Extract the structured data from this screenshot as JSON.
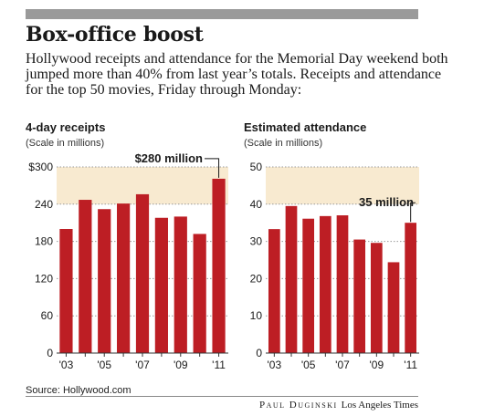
{
  "graphic": {
    "headline": "Box-office boost",
    "intro": "Hollywood receipts and attendance for the Memorial Day weekend both jumped more than 40% from last year’s totals. Receipts and attendance for the top 50 movies, Friday through Monday:",
    "source": "Source: Hollywood.com",
    "credit_author": "Paul Duginski",
    "credit_org": "Los Angeles Times"
  },
  "colors": {
    "bar": "#bd1e24",
    "band": "#f8ead0",
    "topbar": "#9a9a9a"
  },
  "chart_data": [
    {
      "type": "bar",
      "title": "4-day receipts",
      "subtitle": "(Scale in millions)",
      "x": [
        2003,
        2004,
        2005,
        2006,
        2007,
        2008,
        2009,
        2010,
        2011
      ],
      "xtick_labels": [
        "'03",
        "",
        "'05",
        "",
        "'07",
        "",
        "'09",
        "",
        "'11"
      ],
      "values": [
        200,
        247,
        232,
        241,
        256,
        218,
        220,
        192,
        281
      ],
      "ylim": [
        0,
        300
      ],
      "yticks": [
        0,
        60,
        120,
        180,
        240,
        300
      ],
      "ytick_labels": [
        "0",
        "60",
        "120",
        "180",
        "240",
        "$300"
      ],
      "annotation": {
        "text": "$280 million",
        "x": 2011,
        "y": 281
      },
      "grid": true
    },
    {
      "type": "bar",
      "title": "Estimated attendance",
      "subtitle": "(Scale in millions)",
      "x": [
        2003,
        2004,
        2005,
        2006,
        2007,
        2008,
        2009,
        2010,
        2011
      ],
      "xtick_labels": [
        "'03",
        "",
        "'05",
        "",
        "'07",
        "",
        "'09",
        "",
        "'11"
      ],
      "values": [
        33.3,
        39.5,
        36.1,
        36.8,
        37.0,
        30.5,
        29.6,
        24.4,
        35.0
      ],
      "ylim": [
        0,
        50
      ],
      "yticks": [
        0,
        10,
        20,
        30,
        40,
        50
      ],
      "ytick_labels": [
        "0",
        "10",
        "20",
        "30",
        "40",
        "50"
      ],
      "annotation": {
        "text": "35 million",
        "x": 2011,
        "y": 35
      },
      "grid": true
    }
  ]
}
